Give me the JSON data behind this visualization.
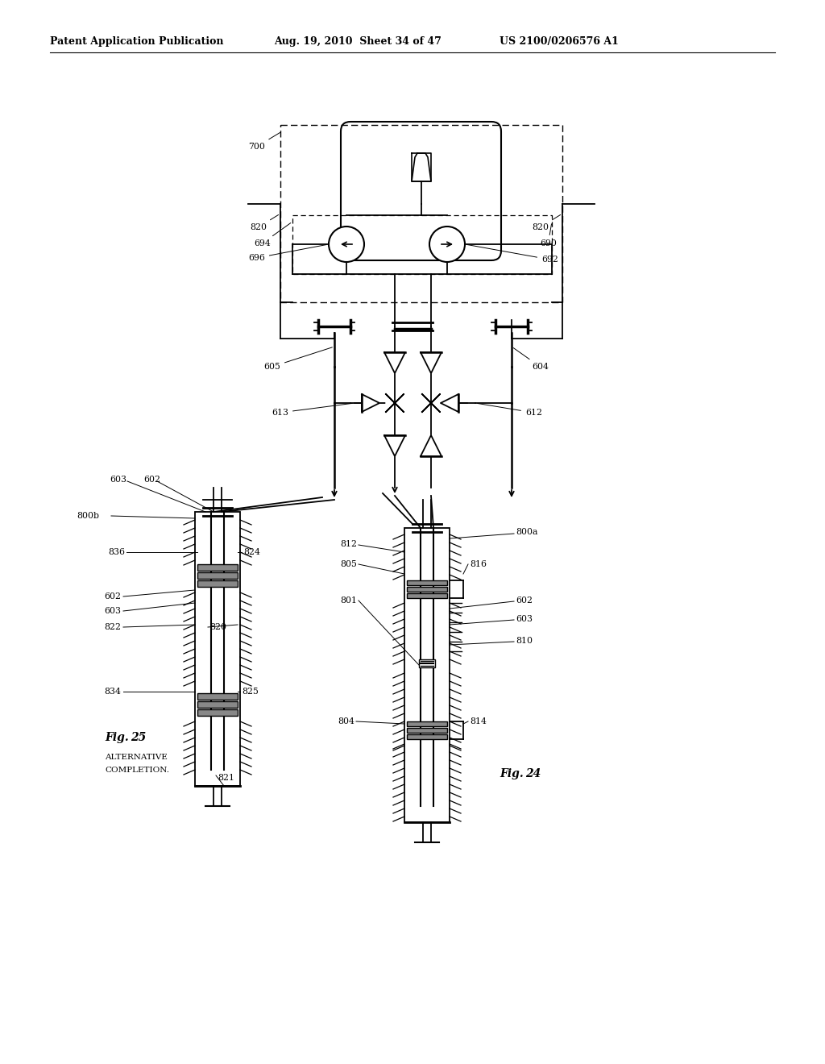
{
  "bg_color": "#ffffff",
  "header_left": "Patent Application Publication",
  "header_center": "Aug. 19, 2010  Sheet 34 of 47",
  "header_right": "US 2100/0206576 A1",
  "fig24_label": "Fig. 24",
  "fig25_label": "Fig. 25",
  "fig25_sublabel": "ALTERNATIVE\nCOMPLETION."
}
